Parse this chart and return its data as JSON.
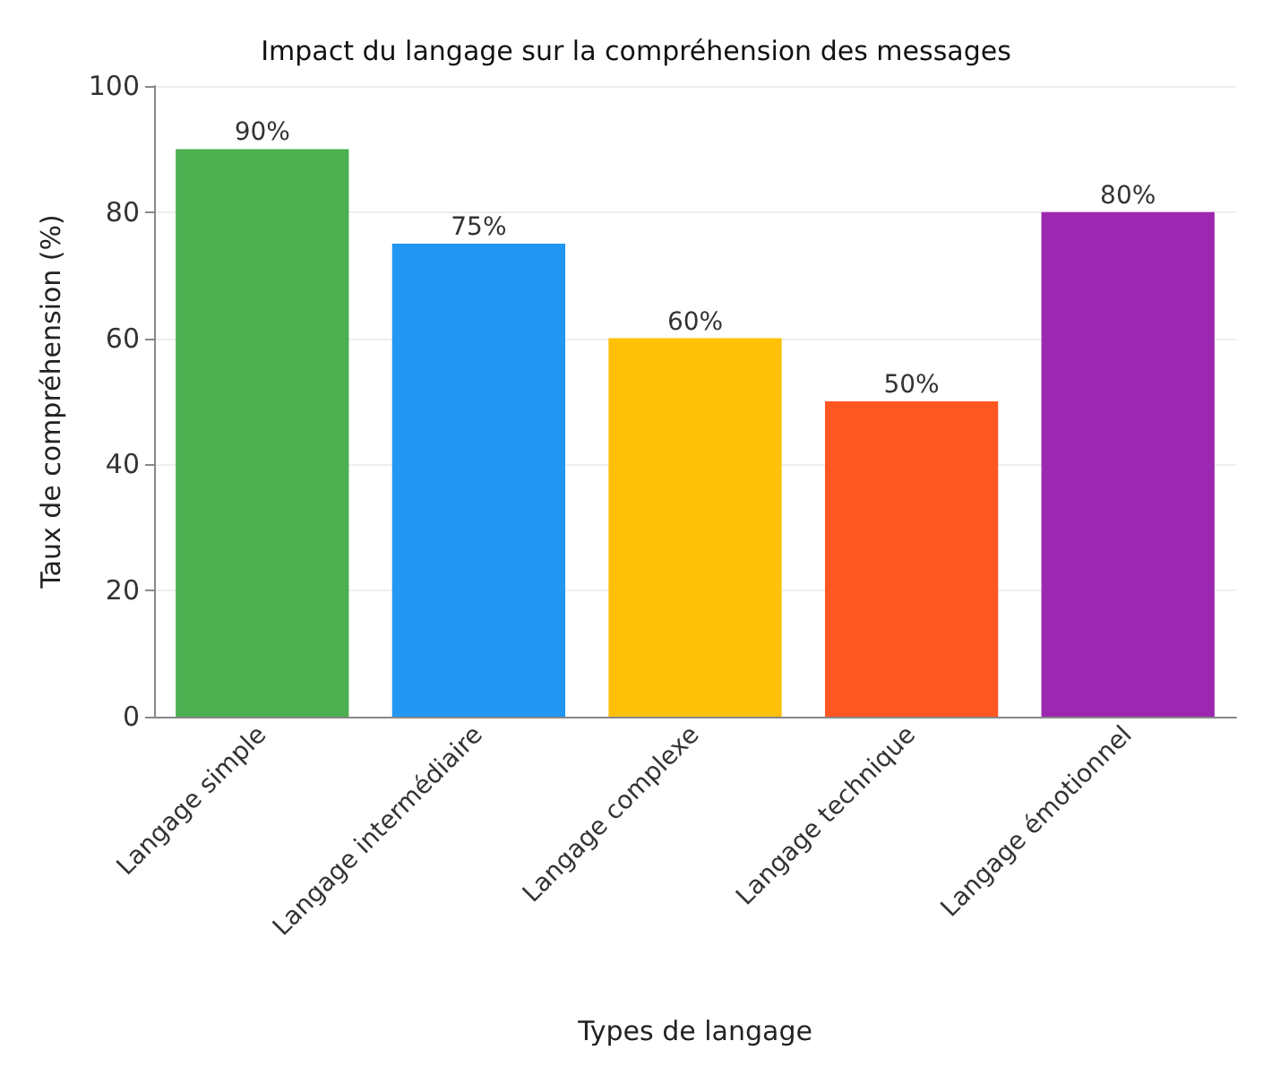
{
  "chart_data": {
    "type": "bar",
    "title": "Impact du langage sur la compréhension des messages",
    "xlabel": "Types de langage",
    "ylabel": "Taux de compréhension (%)",
    "categories": [
      "Langage simple",
      "Langage intermédiaire",
      "Langage complexe",
      "Langage technique",
      "Langage émotionnel"
    ],
    "values": [
      90,
      75,
      60,
      50,
      80
    ],
    "colors": [
      "#4caf50",
      "#2196f3",
      "#ffc107",
      "#ff5722",
      "#9c27b0"
    ],
    "value_labels": [
      "90%",
      "75%",
      "60%",
      "50%",
      "80%"
    ],
    "ylim": [
      0,
      100
    ],
    "yticks": [
      0,
      20,
      40,
      60,
      80,
      100
    ],
    "grid": "y"
  }
}
